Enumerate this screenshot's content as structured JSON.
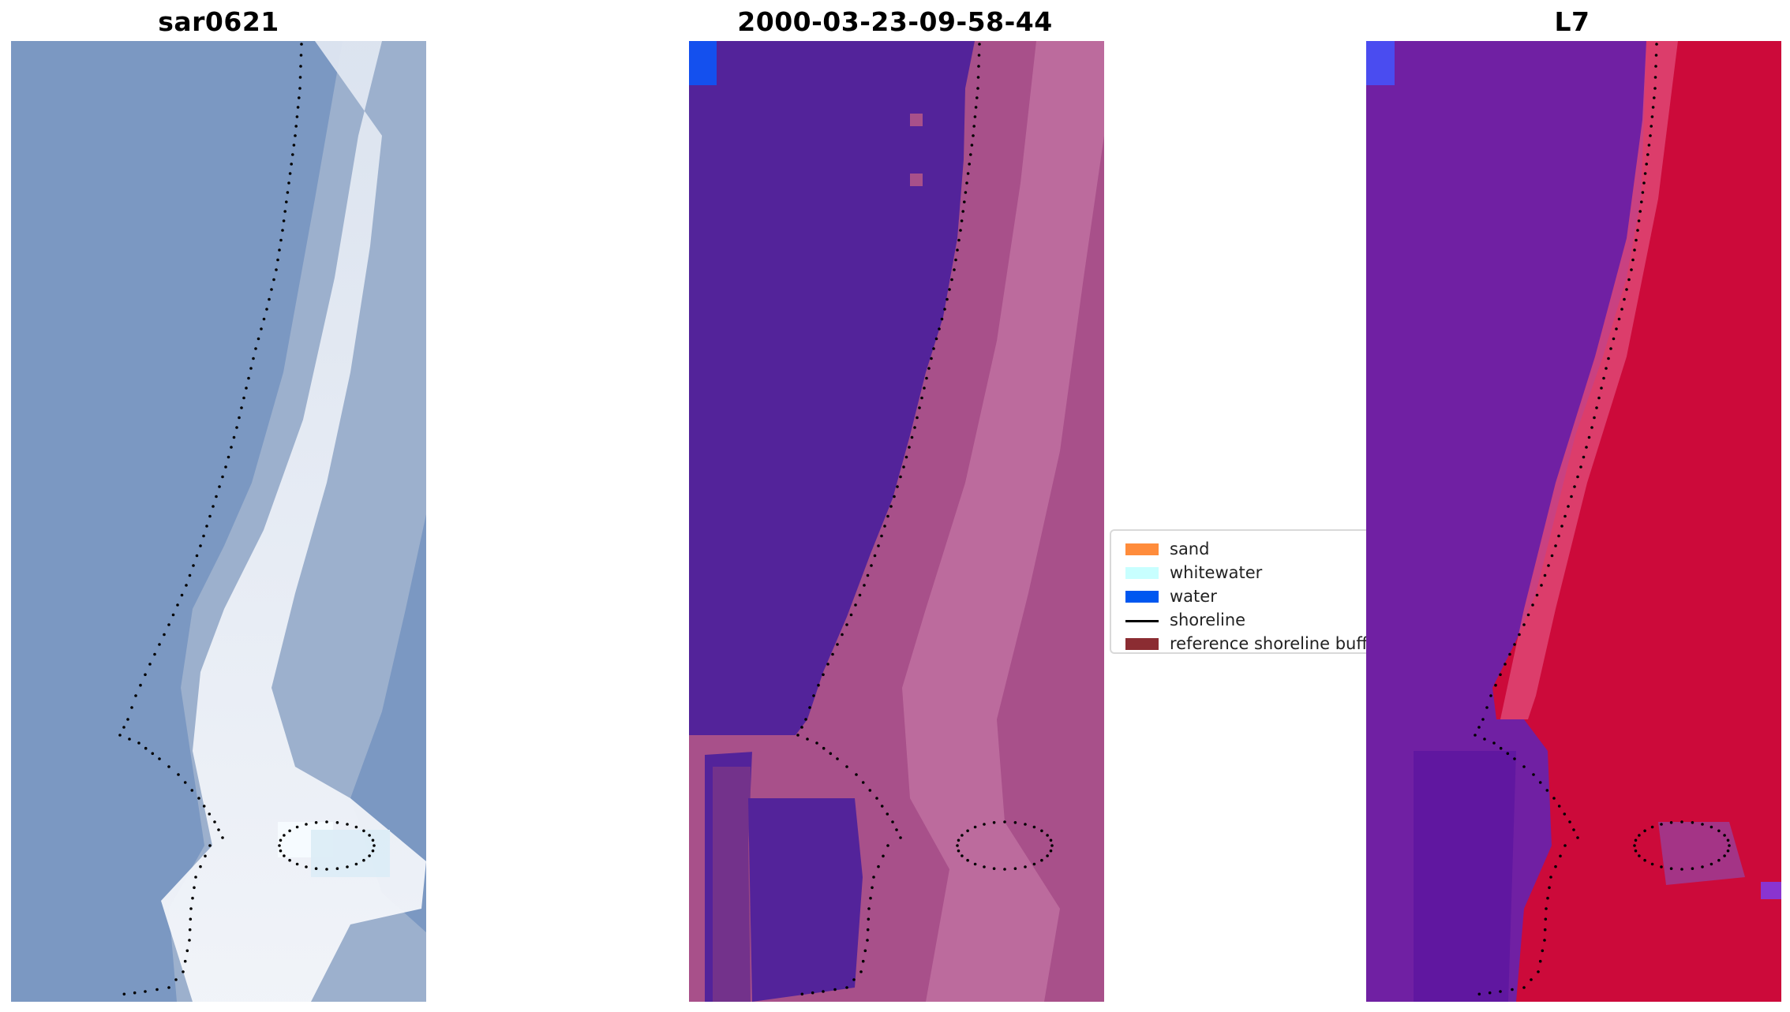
{
  "panels": [
    {
      "title": "sar0621",
      "kind": "rgb-image"
    },
    {
      "title": "2000-03-23-09-58-44",
      "kind": "classified-image"
    },
    {
      "title": "L7",
      "kind": "index-image"
    }
  ],
  "legend": {
    "items": [
      {
        "label": "sand",
        "color": "#ff8c3b",
        "type": "patch"
      },
      {
        "label": "whitewater",
        "color": "#c8ffff",
        "type": "patch"
      },
      {
        "label": "water",
        "color": "#0057f0",
        "type": "patch"
      },
      {
        "label": "shoreline",
        "color": "#000000",
        "type": "line"
      },
      {
        "label": "reference shoreline buffer",
        "color": "#8b2c32",
        "type": "patch"
      }
    ]
  },
  "colors": {
    "water_rgb": "#7b98c2",
    "beach_rgb": "#e8eef6",
    "water_class": "#53239a",
    "land_class": "#b85f93",
    "water_index": "#7020a3",
    "land_index": "#cc0a3a",
    "shoreline_dots": "#000000"
  }
}
